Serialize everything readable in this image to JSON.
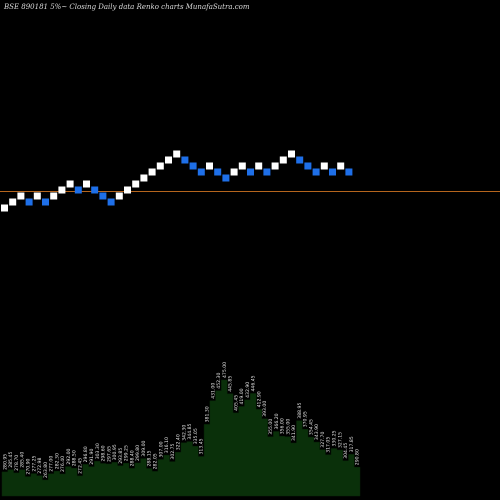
{
  "chart_data": {
    "type": "renko",
    "title": "BSE 890181 5%~ Closing Daily data Renko charts MunafaSutra.com",
    "reference_line_color": "#b5651d",
    "up_brick_color": "#ffffff",
    "down_brick_color": "#1e6fe8",
    "volume_area_color": "#0a300a",
    "bricks": [
      "up",
      "up",
      "up",
      "down",
      "up",
      "down",
      "up",
      "up",
      "up",
      "down",
      "up",
      "down",
      "down",
      "down",
      "up",
      "up",
      "up",
      "up",
      "up",
      "up",
      "up",
      "up",
      "down",
      "down",
      "down",
      "up",
      "down",
      "down",
      "up",
      "up",
      "down",
      "up",
      "down",
      "up",
      "up",
      "up",
      "down",
      "down",
      "down",
      "up",
      "down",
      "up",
      "down"
    ],
    "volume_labels": [
      "280.95",
      "285.45",
      "278.70",
      "285.40",
      "270.90",
      "277.25",
      "272.98",
      "263.80",
      "277.00",
      "282.30",
      "276.40",
      "292.00",
      "288.50",
      "272.45",
      "296.80",
      "291.90",
      "303.30",
      "298.60",
      "297.65",
      "300.95",
      "293.85",
      "299.25",
      "288.40",
      "299.80",
      "309.00",
      "288.15",
      "282.05",
      "307.00",
      "316.10",
      "302.75",
      "322.40",
      "342.30",
      "344.85",
      "335.05",
      "313.45",
      "381.30",
      "431.00",
      "452.30",
      "475.00",
      "445.85",
      "405.45",
      "419.00",
      "432.90",
      "446.45",
      "412.90",
      "393.00",
      "355.00",
      "366.20",
      "356.00",
      "355.00",
      "341.90",
      "388.95",
      "370.95",
      "354.45",
      "343.90",
      "327.70",
      "317.05",
      "330.25",
      "327.15",
      "304.45",
      "317.85",
      "290.80"
    ]
  }
}
